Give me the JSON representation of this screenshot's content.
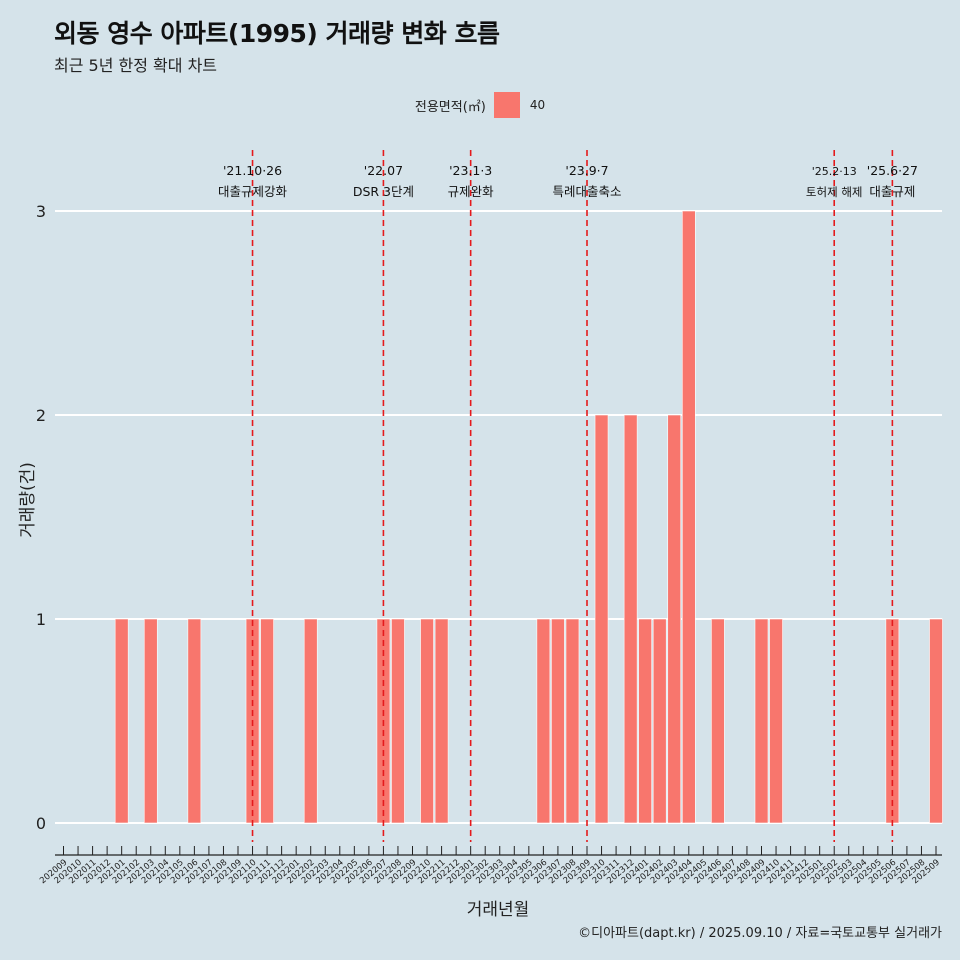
{
  "title": "외동 영수 아파트(1995) 거래량 변화 흐름",
  "subtitle": "최근 5년 한정 확대 차트",
  "legend": {
    "title": "전용면적(㎡)",
    "label": "40"
  },
  "caption": "©디아파트(dapt.kr) / 2025.09.10 / 자료=국토교통부 실거래가",
  "colors": {
    "bar": "#f8766d",
    "event_line": "#e41a1c",
    "background": "#d5e3ea",
    "grid": "#ffffff"
  },
  "chart_data": {
    "type": "bar",
    "xlabel": "거래년월",
    "ylabel": "거래량(건)",
    "ylim": [
      0,
      3
    ],
    "yticks": [
      0,
      1,
      2,
      3
    ],
    "grid": true,
    "legend_position": "top",
    "categories": [
      "202009",
      "202010",
      "202011",
      "202012",
      "202101",
      "202102",
      "202103",
      "202104",
      "202105",
      "202106",
      "202107",
      "202108",
      "202109",
      "202110",
      "202111",
      "202112",
      "202201",
      "202202",
      "202203",
      "202204",
      "202205",
      "202206",
      "202207",
      "202208",
      "202209",
      "202210",
      "202211",
      "202212",
      "202301",
      "202302",
      "202303",
      "202304",
      "202305",
      "202306",
      "202307",
      "202308",
      "202309",
      "202310",
      "202311",
      "202312",
      "202401",
      "202402",
      "202403",
      "202404",
      "202405",
      "202406",
      "202407",
      "202408",
      "202409",
      "202410",
      "202411",
      "202412",
      "202501",
      "202502",
      "202503",
      "202504",
      "202505",
      "202506",
      "202507",
      "202508",
      "202509"
    ],
    "series": [
      {
        "name": "40",
        "values": [
          0,
          0,
          0,
          0,
          1,
          0,
          1,
          0,
          0,
          1,
          0,
          0,
          0,
          1,
          1,
          0,
          0,
          1,
          0,
          0,
          0,
          0,
          1,
          1,
          0,
          1,
          1,
          0,
          0,
          0,
          0,
          0,
          0,
          1,
          1,
          1,
          0,
          2,
          0,
          2,
          1,
          1,
          2,
          3,
          0,
          1,
          0,
          0,
          1,
          1,
          0,
          0,
          0,
          0,
          0,
          0,
          0,
          1,
          0,
          0,
          1
        ]
      }
    ],
    "events": [
      {
        "at": "202110",
        "date": "'21.10·26",
        "label": "대출규제강화"
      },
      {
        "at": "202207",
        "date": "'22.07",
        "label": "DSR 3단계"
      },
      {
        "at": "202301",
        "date": "'23.1·3",
        "label": "규제완화"
      },
      {
        "at": "202309",
        "date": "'23.9·7",
        "label": "특례대출축소"
      },
      {
        "at": "202502",
        "date": "'25.2·13",
        "label": "토허제 해제"
      },
      {
        "at": "202506",
        "date": "'25.6·27",
        "label": "대출규제"
      }
    ]
  }
}
